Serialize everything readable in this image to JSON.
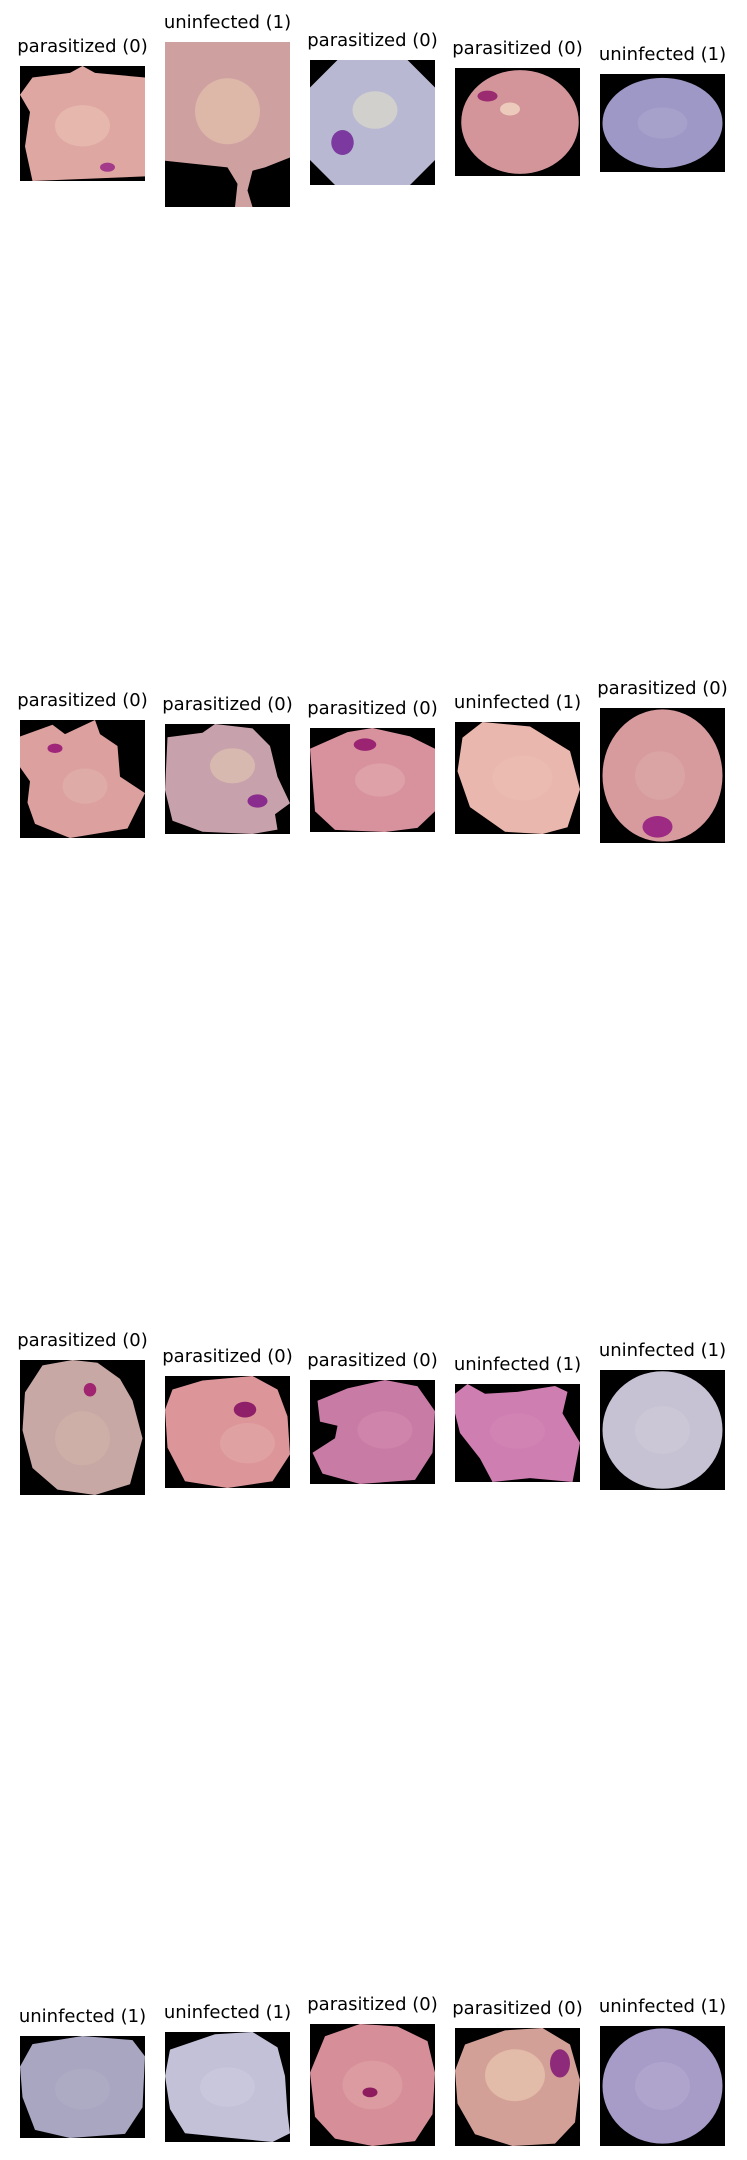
{
  "grid": [
    [
      {
        "label": "parasitized (0)",
        "colors": {
          "bg": "#000000",
          "cell": "#dfa7a2",
          "inner": "#e8bdb2",
          "dot": "#a43b8a"
        }
      },
      {
        "label": "uninfected (1)",
        "colors": {
          "bg": "#000000",
          "cell": "#cfa0a0",
          "inner": "#e2c0ab",
          "dot": ""
        }
      },
      {
        "label": "parasitized (0)",
        "colors": {
          "bg": "#000000",
          "cell": "#b9b8d2",
          "inner": "#dbdac9",
          "dot": "#7c3aa0"
        }
      },
      {
        "label": "parasitized (0)",
        "colors": {
          "bg": "#000000",
          "cell": "#d39599",
          "inner": "#efd0c0",
          "dot": "#9a2b70"
        }
      },
      {
        "label": "uninfected (1)",
        "colors": {
          "bg": "#000000",
          "cell": "#9d98c6",
          "inner": "#aaa6ce",
          "dot": ""
        }
      }
    ],
    [
      {
        "label": "parasitized (0)",
        "colors": {
          "bg": "#000000",
          "cell": "#dca09f",
          "inner": "#e0b5ad",
          "dot": "#a0267a"
        }
      },
      {
        "label": "parasitized (0)",
        "colors": {
          "bg": "#000000",
          "cell": "#c7a1ab",
          "inner": "#dcbfb0",
          "dot": "#8a2c8d"
        }
      },
      {
        "label": "parasitized (0)",
        "colors": {
          "bg": "#000000",
          "cell": "#d8929e",
          "inner": "#e2b0b0",
          "dot": "#9b2472"
        }
      },
      {
        "label": "uninfected (1)",
        "colors": {
          "bg": "#000000",
          "cell": "#e9b7ad",
          "inner": "#edc1b6",
          "dot": ""
        }
      },
      {
        "label": "parasitized (0)",
        "colors": {
          "bg": "#000000",
          "cell": "#d79b9d",
          "inner": "#deadad",
          "dot": "#9d2a83"
        }
      }
    ],
    [
      {
        "label": "parasitized (0)",
        "colors": {
          "bg": "#000000",
          "cell": "#c8a8a4",
          "inner": "#d6b8ac",
          "dot": "#a0246f"
        }
      },
      {
        "label": "parasitized (0)",
        "colors": {
          "bg": "#000000",
          "cell": "#dc9599",
          "inner": "#e2aaaa",
          "dot": "#8e1f68"
        }
      },
      {
        "label": "parasitized (0)",
        "colors": {
          "bg": "#000000",
          "cell": "#c87ba5",
          "inner": "#d690b2",
          "dot": ""
        }
      },
      {
        "label": "uninfected (1)",
        "colors": {
          "bg": "#000000",
          "cell": "#cf7eb1",
          "inner": "#d58fb8",
          "dot": ""
        }
      },
      {
        "label": "uninfected (1)",
        "colors": {
          "bg": "#000000",
          "cell": "#c6c1d3",
          "inner": "#d2cdd9",
          "dot": ""
        }
      }
    ],
    [
      {
        "label": "uninfected (1)",
        "colors": {
          "bg": "#000000",
          "cell": "#a8a6c1",
          "inner": "#b2b0c7",
          "dot": ""
        }
      },
      {
        "label": "uninfected (1)",
        "colors": {
          "bg": "#000000",
          "cell": "#c3c1d8",
          "inner": "#cfcde0",
          "dot": ""
        }
      },
      {
        "label": "parasitized (0)",
        "colors": {
          "bg": "#000000",
          "cell": "#d68f98",
          "inner": "#e2a8a8",
          "dot": "#8e1b5e"
        }
      },
      {
        "label": "parasitized (0)",
        "colors": {
          "bg": "#000000",
          "cell": "#d3a097",
          "inner": "#e8c6b0",
          "dot": "#8e2a7a"
        }
      },
      {
        "label": "uninfected (1)",
        "colors": {
          "bg": "#000000",
          "cell": "#a79cc8",
          "inner": "#b6acd0",
          "dot": ""
        }
      }
    ]
  ]
}
